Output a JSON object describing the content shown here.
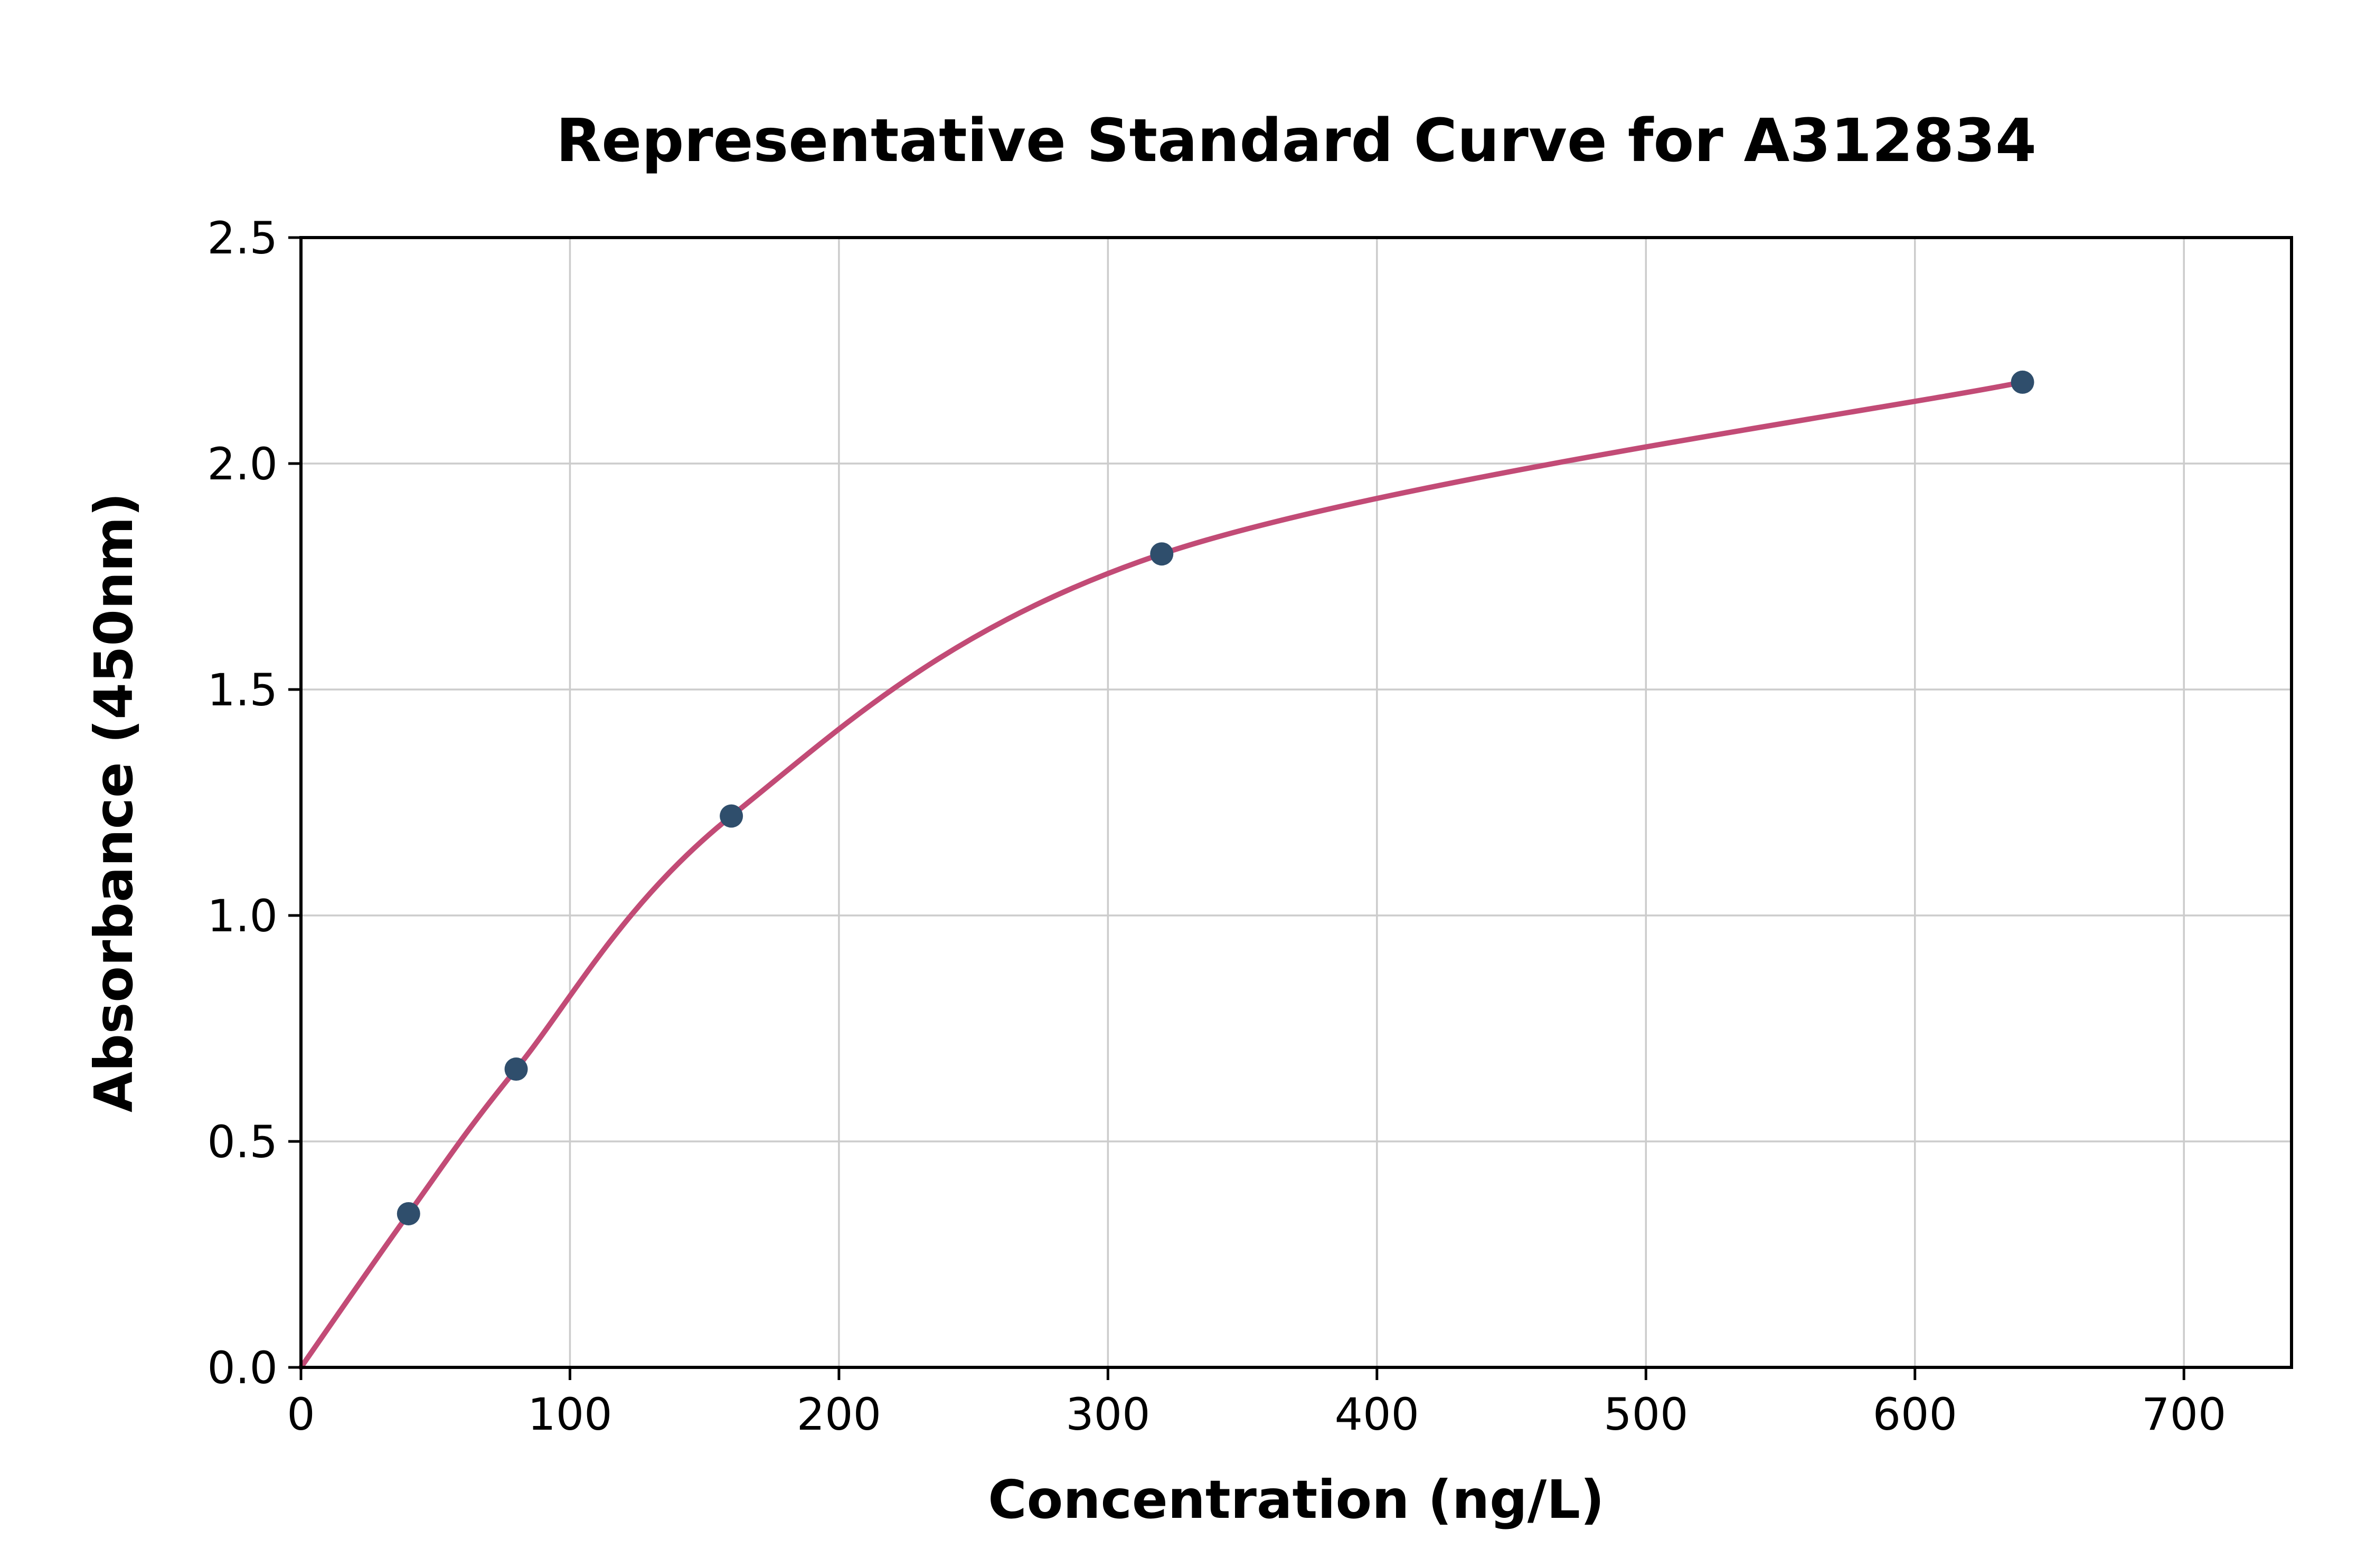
{
  "figure": {
    "background": "#ffffff"
  },
  "chart_data": {
    "type": "scatter",
    "title": "Representative Standard Curve for A312834",
    "xlabel": "Concentration (ng/L)",
    "ylabel": "Absorbance (450nm)",
    "xlim": [
      0,
      740
    ],
    "ylim": [
      0,
      2.5
    ],
    "xticks": [
      0,
      100,
      200,
      300,
      400,
      500,
      600,
      700
    ],
    "xtick_labels": [
      "0",
      "100",
      "200",
      "300",
      "400",
      "500",
      "600",
      "700"
    ],
    "yticks": [
      0.0,
      0.5,
      1.0,
      1.5,
      2.0,
      2.5
    ],
    "ytick_labels": [
      "0.0",
      "0.5",
      "1.0",
      "1.5",
      "2.0",
      "2.5"
    ],
    "grid": true,
    "legend": "none",
    "series": [
      {
        "name": "fitted-curve",
        "type": "line",
        "color": "#c24b76",
        "x": [
          0,
          40,
          80,
          160,
          320,
          640
        ],
        "y": [
          0.0,
          0.34,
          0.66,
          1.22,
          1.8,
          2.18
        ]
      },
      {
        "name": "standard-points",
        "type": "scatter",
        "color": "#2f4e6c",
        "x": [
          40,
          80,
          160,
          320,
          640
        ],
        "y": [
          0.34,
          0.66,
          1.22,
          1.8,
          2.18
        ]
      }
    ],
    "colors": {
      "curve": "#c24b76",
      "marker": "#2f4e6c",
      "grid": "#cccccc",
      "axis": "#000000",
      "background": "#ffffff"
    }
  }
}
